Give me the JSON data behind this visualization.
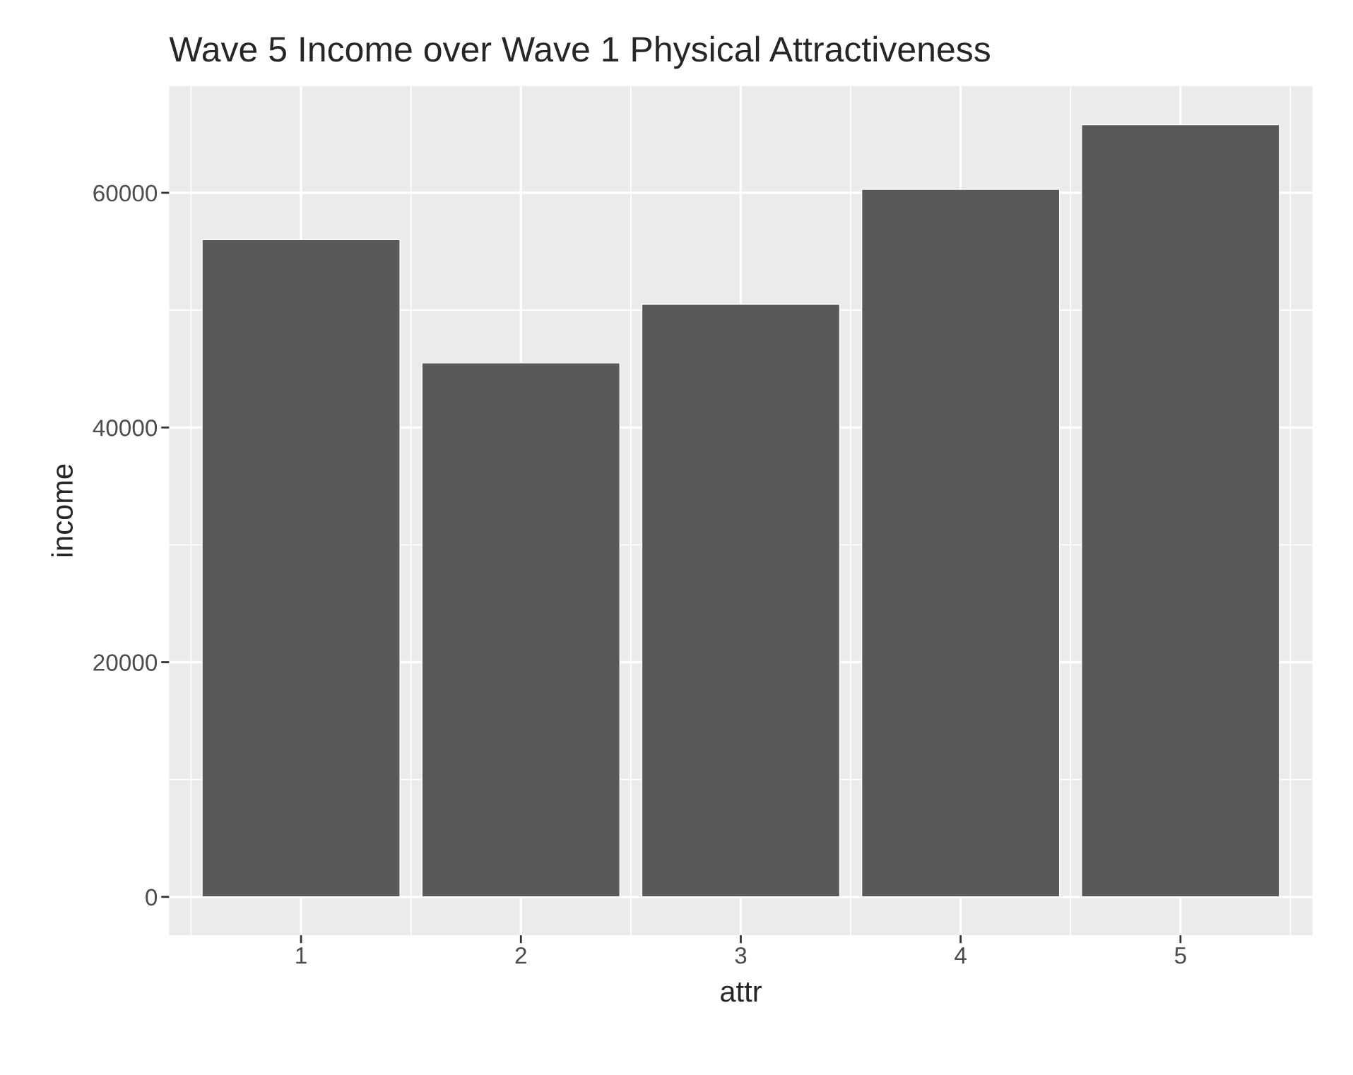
{
  "chart_data": {
    "type": "bar",
    "title": "Wave 5 Income over Wave 1 Physical Attractiveness",
    "xlabel": "attr",
    "ylabel": "income",
    "categories": [
      "1",
      "2",
      "3",
      "4",
      "5"
    ],
    "values": [
      56000,
      45500,
      50500,
      60300,
      65800
    ],
    "color": "#595959",
    "ylim": [
      -3270,
      69100
    ],
    "yticks": [
      0,
      20000,
      40000,
      60000
    ],
    "grid": true
  }
}
